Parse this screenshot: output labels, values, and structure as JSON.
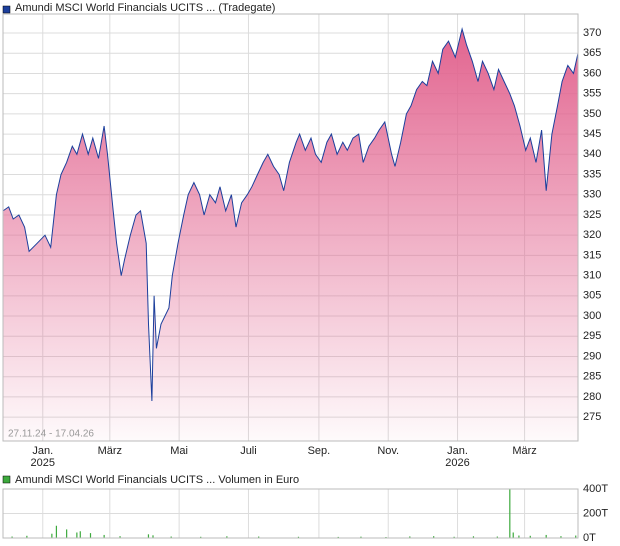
{
  "chart_data": [
    {
      "type": "area",
      "legend": "Amundi MSCI World Financials UCITS ... (Tradegate)",
      "date_range": "27.11.24 - 17.04.26",
      "x": [
        "2024-11-27",
        "2024-12-02",
        "2024-12-06",
        "2024-12-11",
        "2024-12-16",
        "2024-12-20",
        "2024-12-27",
        "2025-01-03",
        "2025-01-08",
        "2025-01-13",
        "2025-01-17",
        "2025-01-22",
        "2025-01-27",
        "2025-01-31",
        "2025-02-05",
        "2025-02-10",
        "2025-02-14",
        "2025-02-19",
        "2025-02-24",
        "2025-02-27",
        "2025-03-04",
        "2025-03-07",
        "2025-03-11",
        "2025-03-14",
        "2025-03-19",
        "2025-03-24",
        "2025-03-28",
        "2025-04-02",
        "2025-04-04",
        "2025-04-07",
        "2025-04-09",
        "2025-04-11",
        "2025-04-15",
        "2025-04-22",
        "2025-04-25",
        "2025-04-30",
        "2025-05-05",
        "2025-05-09",
        "2025-05-14",
        "2025-05-19",
        "2025-05-23",
        "2025-05-28",
        "2025-06-02",
        "2025-06-06",
        "2025-06-11",
        "2025-06-16",
        "2025-06-20",
        "2025-06-25",
        "2025-06-30",
        "2025-07-04",
        "2025-07-09",
        "2025-07-14",
        "2025-07-18",
        "2025-07-23",
        "2025-07-28",
        "2025-08-01",
        "2025-08-06",
        "2025-08-12",
        "2025-08-15",
        "2025-08-20",
        "2025-08-25",
        "2025-08-29",
        "2025-09-03",
        "2025-09-08",
        "2025-09-12",
        "2025-09-17",
        "2025-09-22",
        "2025-09-26",
        "2025-10-01",
        "2025-10-06",
        "2025-10-10",
        "2025-10-15",
        "2025-10-20",
        "2025-10-24",
        "2025-10-29",
        "2025-11-04",
        "2025-11-07",
        "2025-11-12",
        "2025-11-17",
        "2025-11-21",
        "2025-11-26",
        "2025-12-01",
        "2025-12-05",
        "2025-12-10",
        "2025-12-15",
        "2025-12-19",
        "2025-12-24",
        "2025-12-30",
        "2026-01-05",
        "2026-01-09",
        "2026-01-14",
        "2026-01-19",
        "2026-01-23",
        "2026-01-28",
        "2026-02-02",
        "2026-02-06",
        "2026-02-11",
        "2026-02-16",
        "2026-02-20",
        "2026-02-25",
        "2026-03-02",
        "2026-03-06",
        "2026-03-11",
        "2026-03-16",
        "2026-03-20",
        "2026-03-25",
        "2026-03-30",
        "2026-04-03",
        "2026-04-08",
        "2026-04-13",
        "2026-04-17"
      ],
      "series": [
        {
          "name": "Amundi MSCI World Financials UCITS ... (Tradegate)",
          "color": "#1c3f9c",
          "fill": "#e2648f",
          "values": [
            326,
            327,
            324,
            325,
            322,
            316,
            318,
            320,
            317,
            330,
            335,
            338,
            342,
            340,
            345,
            340,
            344,
            339,
            347,
            340,
            326,
            318,
            310,
            314,
            320,
            325,
            326,
            318,
            298,
            279,
            305,
            292,
            298,
            302,
            310,
            318,
            325,
            330,
            333,
            330,
            325,
            330,
            328,
            332,
            326,
            330,
            322,
            328,
            330,
            332,
            335,
            338,
            340,
            337,
            335,
            331,
            338,
            343,
            345,
            341,
            344,
            340,
            338,
            343,
            345,
            340,
            343,
            341,
            344,
            345,
            338,
            342,
            344,
            346,
            348,
            340,
            337,
            343,
            350,
            352,
            356,
            358,
            357,
            363,
            360,
            366,
            368,
            364,
            371,
            367,
            363,
            358,
            363,
            360,
            356,
            361,
            358,
            355,
            352,
            347,
            341,
            344,
            338,
            346,
            331,
            345,
            352,
            358,
            362,
            360,
            365
          ]
        }
      ],
      "xlim": [
        "2024-11-27",
        "2026-04-17"
      ],
      "xticks": [
        {
          "value": "2025-01-01",
          "label": "Jan."
        },
        {
          "value": "2025-03-01",
          "label": "März"
        },
        {
          "value": "2025-05-01",
          "label": "Mai"
        },
        {
          "value": "2025-07-01",
          "label": "Juli"
        },
        {
          "value": "2025-09-01",
          "label": "Sep."
        },
        {
          "value": "2025-11-01",
          "label": "Nov."
        },
        {
          "value": "2026-01-01",
          "label": "Jan."
        },
        {
          "value": "2026-03-01",
          "label": "März"
        }
      ],
      "x_year_ticks": [
        {
          "value": "2025-01-01",
          "label": "2025"
        },
        {
          "value": "2026-01-01",
          "label": "2026"
        }
      ],
      "ylim": [
        269.1,
        374.7
      ],
      "yticks": [
        275,
        280,
        285,
        290,
        295,
        300,
        305,
        310,
        315,
        320,
        325,
        330,
        335,
        340,
        345,
        350,
        355,
        360,
        365,
        370
      ],
      "grid": true
    },
    {
      "type": "bar",
      "legend": "Amundi MSCI World Financials UCITS ... Volumen in Euro",
      "color": "#3daa3d",
      "x": [
        "2024-12-05",
        "2024-12-18",
        "2025-01-09",
        "2025-01-13",
        "2025-01-22",
        "2025-01-31",
        "2025-02-03",
        "2025-02-12",
        "2025-02-24",
        "2025-03-10",
        "2025-04-04",
        "2025-04-08",
        "2025-04-24",
        "2025-05-20",
        "2025-06-12",
        "2025-07-10",
        "2025-08-14",
        "2025-09-18",
        "2025-10-08",
        "2025-10-30",
        "2025-11-20",
        "2025-12-11",
        "2025-12-29",
        "2026-01-15",
        "2026-02-05",
        "2026-02-16",
        "2026-02-19",
        "2026-02-24",
        "2026-03-06",
        "2026-03-20",
        "2026-04-02",
        "2026-04-15"
      ],
      "values": [
        12000,
        18000,
        35000,
        100000,
        70000,
        45000,
        55000,
        40000,
        25000,
        15000,
        30000,
        22000,
        12000,
        10000,
        14000,
        12000,
        10000,
        9000,
        11000,
        8000,
        13000,
        15000,
        10000,
        14000,
        12000,
        400000,
        45000,
        20000,
        18000,
        25000,
        15000,
        20000
      ],
      "xlim": [
        "2024-11-27",
        "2026-04-17"
      ],
      "ylim": [
        0,
        400000
      ],
      "yticks": [
        {
          "value": 0,
          "label": "0T"
        },
        {
          "value": 200000,
          "label": "200T"
        },
        {
          "value": 400000,
          "label": "400T"
        }
      ],
      "grid": true
    }
  ]
}
